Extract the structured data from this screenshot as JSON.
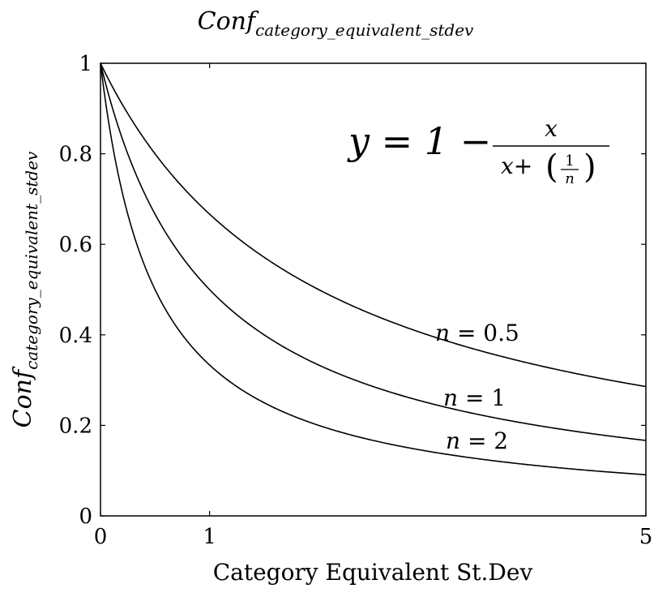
{
  "chart_data": {
    "type": "line",
    "title": {
      "base": "Conf",
      "subscript": "category_equivalent_stdev"
    },
    "xlabel": "Category Equivalent St.Dev",
    "ylabel": {
      "base": "Conf",
      "subscript": "category_equivalent_stdev"
    },
    "xlim": [
      0,
      5
    ],
    "ylim": [
      0,
      1
    ],
    "xticks": [
      0,
      1,
      5
    ],
    "yticks": [
      0,
      0.2,
      0.4,
      0.6,
      0.8,
      1
    ],
    "ytick_labels": [
      "0",
      "0.2",
      "0.4",
      "0.6",
      "0.8",
      "1"
    ],
    "xtick_labels": [
      "0",
      "1",
      "5"
    ],
    "grid": false,
    "legend": "none",
    "formula": {
      "lhs": "y = 1 −",
      "num": "x",
      "den_prefix": "x+",
      "inner_num": "1",
      "inner_den": "n"
    },
    "series": [
      {
        "name": "n = 0.5",
        "n": 0.5,
        "label_var": "n",
        "label_rest": " = 0.5",
        "x": [
          0,
          0.25,
          0.5,
          1,
          1.5,
          2,
          2.5,
          3,
          3.5,
          4,
          4.5,
          5
        ],
        "y": [
          1,
          0.889,
          0.8,
          0.667,
          0.571,
          0.5,
          0.444,
          0.4,
          0.364,
          0.333,
          0.308,
          0.286
        ]
      },
      {
        "name": "n = 1",
        "n": 1,
        "label_var": "n",
        "label_rest": " = 1",
        "x": [
          0,
          0.25,
          0.5,
          1,
          1.5,
          2,
          2.5,
          3,
          3.5,
          4,
          4.5,
          5
        ],
        "y": [
          1,
          0.8,
          0.667,
          0.5,
          0.4,
          0.333,
          0.286,
          0.25,
          0.222,
          0.2,
          0.182,
          0.167
        ]
      },
      {
        "name": "n = 2",
        "n": 2,
        "label_var": "n",
        "label_rest": " = 2",
        "x": [
          0,
          0.25,
          0.5,
          1,
          1.5,
          2,
          2.5,
          3,
          3.5,
          4,
          4.5,
          5
        ],
        "y": [
          1,
          0.667,
          0.5,
          0.333,
          0.25,
          0.2,
          0.167,
          0.143,
          0.125,
          0.111,
          0.1,
          0.091
        ]
      }
    ]
  }
}
